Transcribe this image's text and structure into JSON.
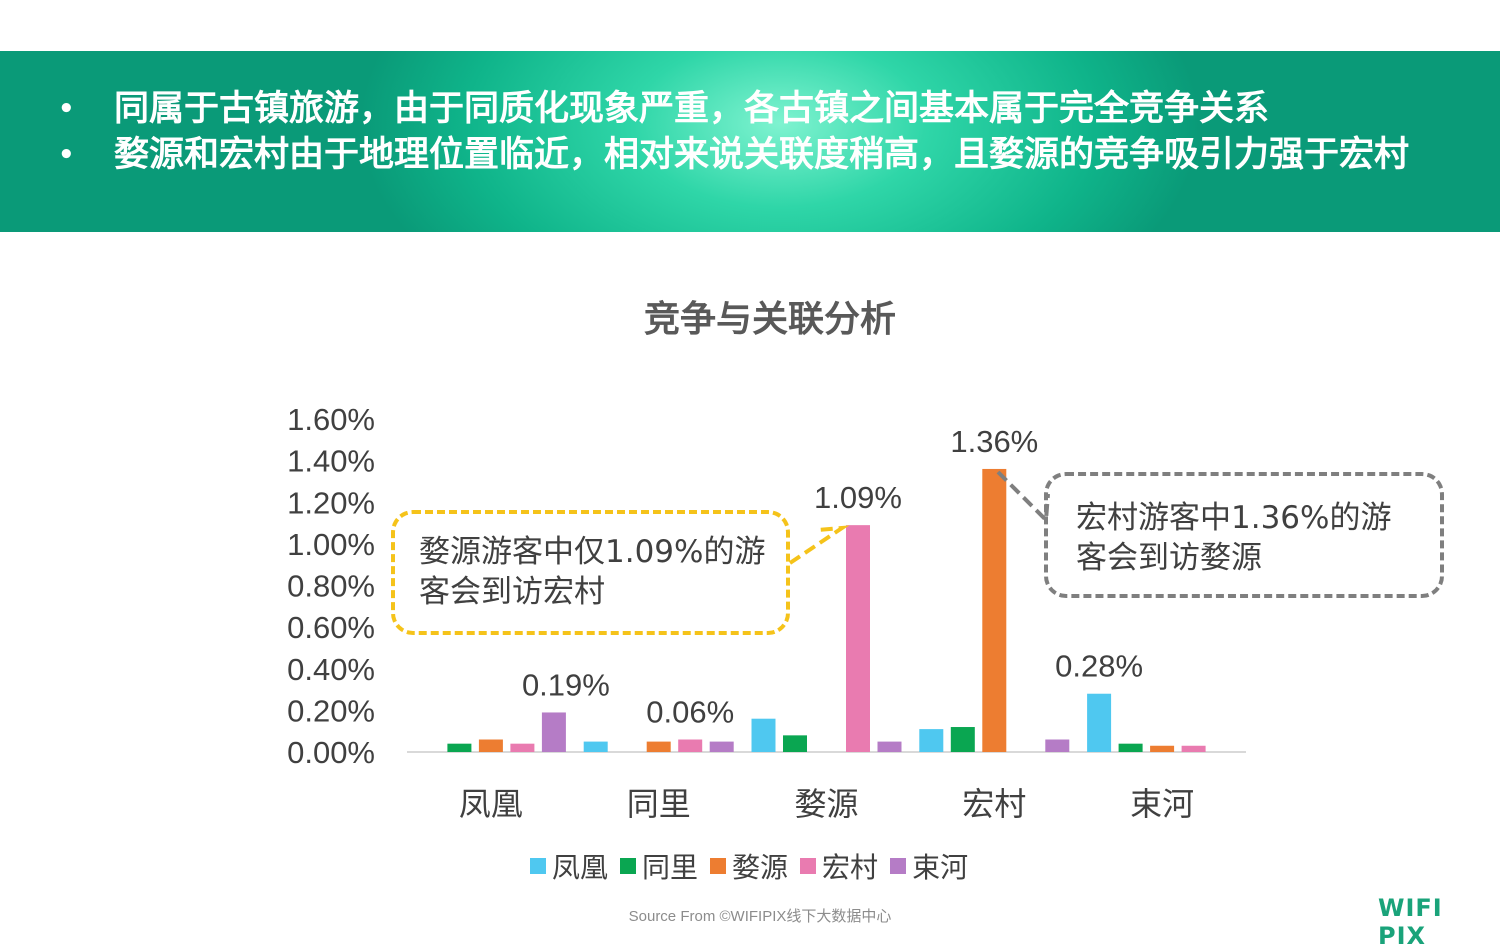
{
  "header": {
    "bullets": [
      "同属于古镇旅游，由于同质化现象严重，各古镇之间基本属于完全竞争关系",
      "婺源和宏村由于地理位置临近，相对来说关联度稍高，且婺源的竞争吸引力强于宏村"
    ],
    "bullet_symbol": "•"
  },
  "callouts": {
    "wuyuan": "婺源游客中仅1.09%的游客会到访宏村",
    "hongcun": "宏村游客中1.36%的游客会到访婺源"
  },
  "footer": {
    "source": "Source From ©WIFIPIX线下大数据中心",
    "logo": "WIFI PIX"
  },
  "chart_data": {
    "type": "bar",
    "title": "竞争与关联分析",
    "categories": [
      "凤凰",
      "同里",
      "婺源",
      "宏村",
      "束河"
    ],
    "series": [
      {
        "name": "凤凰",
        "color": "#4fc8f0",
        "values": [
          null,
          0.0005,
          0.0016,
          0.0011,
          0.0028
        ]
      },
      {
        "name": "同里",
        "color": "#0aa651",
        "values": [
          0.0004,
          null,
          0.0008,
          0.0012,
          0.0004
        ]
      },
      {
        "name": "婺源",
        "color": "#ed7d31",
        "values": [
          0.0006,
          0.0005,
          null,
          0.0136,
          0.0003
        ]
      },
      {
        "name": "宏村",
        "color": "#e97bb0",
        "values": [
          0.0004,
          0.0006,
          0.0109,
          null,
          0.0003
        ]
      },
      {
        "name": "束河",
        "color": "#b57cc6",
        "values": [
          0.0019,
          0.0005,
          0.0005,
          0.0006,
          null
        ]
      }
    ],
    "data_labels": [
      {
        "category": 0,
        "series": 4,
        "text": "0.19%"
      },
      {
        "category": 1,
        "series": 3,
        "text": "0.06%"
      },
      {
        "category": 2,
        "series": 3,
        "text": "1.09%"
      },
      {
        "category": 3,
        "series": 2,
        "text": "1.36%"
      },
      {
        "category": 4,
        "series": 0,
        "text": "0.28%"
      }
    ],
    "yticks": [
      "0.00%",
      "0.20%",
      "0.40%",
      "0.60%",
      "0.80%",
      "1.00%",
      "1.20%",
      "1.40%",
      "1.60%"
    ],
    "ylim": [
      0,
      0.016
    ],
    "grid": false,
    "legend_position": "bottom"
  }
}
